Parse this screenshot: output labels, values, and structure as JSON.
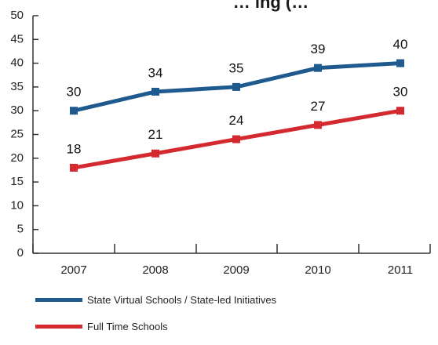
{
  "chart_data": {
    "type": "line",
    "title": "… ing (…",
    "categories": [
      "2007",
      "2008",
      "2009",
      "2010",
      "2011"
    ],
    "ylim": [
      0,
      50
    ],
    "yticks": [
      "0",
      "5",
      "10",
      "15",
      "20",
      "25",
      "30",
      "35",
      "40",
      "45",
      "50"
    ],
    "grid": false,
    "legend_position": "bottom-left",
    "series": [
      {
        "name": "State Virtual Schools / State-led Initiatives",
        "color": "#1f5a8e",
        "values": [
          30,
          34,
          35,
          39,
          40
        ],
        "labels": [
          "30",
          "34",
          "35",
          "39",
          "40"
        ]
      },
      {
        "name": "Full Time Schools",
        "color": "#d42a2f",
        "values": [
          18,
          21,
          24,
          27,
          30
        ],
        "labels": [
          "18",
          "21",
          "24",
          "27",
          "30"
        ]
      }
    ]
  }
}
